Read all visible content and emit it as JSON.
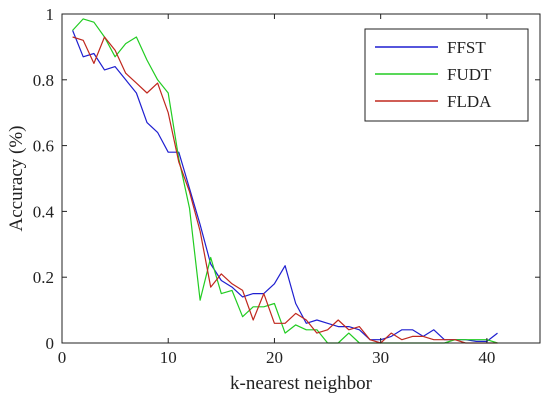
{
  "chart_data": {
    "type": "line",
    "xlabel": "k-nearest neighbor",
    "ylabel": "Accuracy (%)",
    "xlim": [
      0,
      45
    ],
    "ylim": [
      0,
      1
    ],
    "xticks": [
      0,
      10,
      20,
      30,
      40
    ],
    "yticks": [
      0,
      0.2,
      0.4,
      0.6,
      0.8,
      1
    ],
    "ytick_labels": [
      "0",
      "0.2",
      "0.4",
      "0.6",
      "0.8",
      "1"
    ],
    "grid": false,
    "legend_position": "top-right",
    "series": [
      {
        "name": "FFST",
        "color": "#1f1fd0",
        "x": [
          1,
          2,
          3,
          4,
          5,
          6,
          7,
          8,
          9,
          10,
          11,
          12,
          13,
          14,
          15,
          16,
          17,
          18,
          19,
          20,
          21,
          22,
          23,
          24,
          25,
          26,
          27,
          28,
          29,
          30,
          31,
          32,
          33,
          34,
          35,
          36,
          37,
          38,
          39,
          40,
          41
        ],
        "y": [
          0.95,
          0.87,
          0.88,
          0.83,
          0.84,
          0.8,
          0.76,
          0.67,
          0.64,
          0.58,
          0.58,
          0.47,
          0.36,
          0.24,
          0.19,
          0.17,
          0.14,
          0.15,
          0.15,
          0.18,
          0.235,
          0.12,
          0.06,
          0.07,
          0.06,
          0.05,
          0.05,
          0.04,
          0.01,
          0.01,
          0.02,
          0.04,
          0.04,
          0.02,
          0.04,
          0.01,
          0.01,
          0.01,
          0.005,
          0.005,
          0.03
        ]
      },
      {
        "name": "FUDT",
        "color": "#22cc22",
        "x": [
          1,
          2,
          3,
          4,
          5,
          6,
          7,
          8,
          9,
          10,
          11,
          12,
          13,
          14,
          15,
          16,
          17,
          18,
          19,
          20,
          21,
          22,
          23,
          24,
          25,
          26,
          27,
          28,
          29,
          30,
          31,
          32,
          33,
          34,
          35,
          36,
          37,
          38,
          39,
          40,
          41
        ],
        "y": [
          0.95,
          0.985,
          0.975,
          0.93,
          0.87,
          0.91,
          0.93,
          0.86,
          0.8,
          0.76,
          0.56,
          0.41,
          0.13,
          0.26,
          0.15,
          0.16,
          0.08,
          0.11,
          0.11,
          0.12,
          0.03,
          0.055,
          0.04,
          0.04,
          0.0,
          0.0,
          0.03,
          0.0,
          0.0,
          0.0,
          0.0,
          0.0,
          0.0,
          0.0,
          0.0,
          0.0,
          0.01,
          0.01,
          0.01,
          0.01,
          0.0
        ]
      },
      {
        "name": "FLDA",
        "color": "#c0281e",
        "x": [
          1,
          2,
          3,
          4,
          5,
          6,
          7,
          8,
          9,
          10,
          11,
          12,
          13,
          14,
          15,
          16,
          17,
          18,
          19,
          20,
          21,
          22,
          23,
          24,
          25,
          26,
          27,
          28,
          29,
          30,
          31,
          32,
          33,
          34,
          35,
          36,
          37,
          38,
          39,
          40,
          41
        ],
        "y": [
          0.93,
          0.92,
          0.85,
          0.93,
          0.89,
          0.82,
          0.79,
          0.76,
          0.79,
          0.7,
          0.55,
          0.46,
          0.34,
          0.17,
          0.21,
          0.18,
          0.16,
          0.07,
          0.15,
          0.06,
          0.06,
          0.09,
          0.07,
          0.03,
          0.04,
          0.07,
          0.04,
          0.05,
          0.01,
          0.0,
          0.03,
          0.01,
          0.02,
          0.02,
          0.01,
          0.01,
          0.01,
          0.0,
          0.0,
          0.0,
          0.0
        ]
      }
    ]
  }
}
